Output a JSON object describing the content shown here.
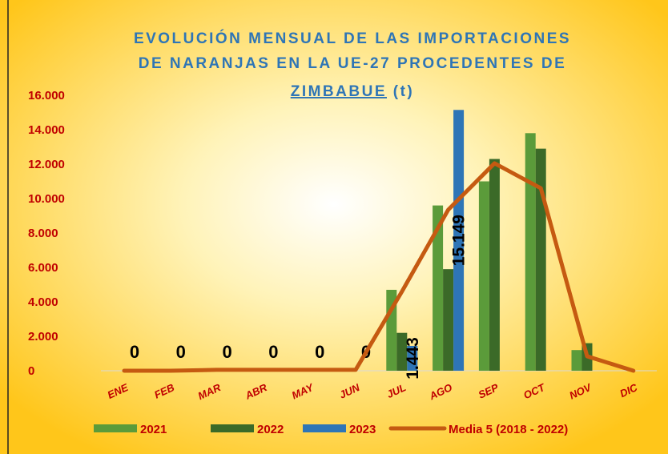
{
  "chart_data": {
    "type": "bar",
    "title": [
      "EVOLUCIÓN MENSUAL DE LAS IMPORTACIONES",
      "DE NARANJAS EN LA UE-27 PROCEDENTES DE",
      "ZIMBABUE",
      "(t)"
    ],
    "categories": [
      "ENE",
      "FEB",
      "MAR",
      "ABR",
      "MAY",
      "JUN",
      "JUL",
      "AGO",
      "SEP",
      "OCT",
      "NOV",
      "DIC"
    ],
    "series": [
      {
        "name": "2021",
        "type": "bar",
        "color": "#5b9b3a",
        "values": [
          0,
          0,
          0,
          0,
          0,
          0,
          4700,
          9600,
          11000,
          13800,
          1200,
          0
        ]
      },
      {
        "name": "2022",
        "type": "bar",
        "color": "#3b6a28",
        "values": [
          0,
          0,
          0,
          0,
          0,
          0,
          2200,
          5900,
          12300,
          12900,
          1600,
          0
        ]
      },
      {
        "name": "2023",
        "type": "bar",
        "color": "#2e75b6",
        "values": [
          0,
          0,
          0,
          0,
          0,
          0,
          1443,
          15149,
          null,
          null,
          null,
          null
        ],
        "value_labels": [
          "0",
          "0",
          "0",
          "0",
          "0",
          "0",
          "1.443",
          "15.149",
          null,
          null,
          null,
          null
        ]
      },
      {
        "name": "Media 5 (2018 - 2022)",
        "type": "line",
        "color": "#c55a11",
        "values": [
          0,
          0,
          50,
          50,
          50,
          50,
          4600,
          9350,
          12050,
          10600,
          840,
          0
        ]
      }
    ],
    "ylim": [
      0,
      16000
    ],
    "yticks": [
      0,
      {
        "value": 2000,
        "label": "2.000"
      },
      {
        "value": 4000,
        "label": "4.000"
      },
      {
        "value": 6000,
        "label": "6.000"
      },
      {
        "value": 8000,
        "label": "8.000"
      },
      {
        "value": 10000,
        "label": "10.000"
      },
      {
        "value": 12000,
        "label": "12.000"
      },
      {
        "value": 14000,
        "label": "14.000"
      },
      {
        "value": 16000,
        "label": "16.000"
      }
    ],
    "grid": false,
    "legend": "bottom"
  }
}
